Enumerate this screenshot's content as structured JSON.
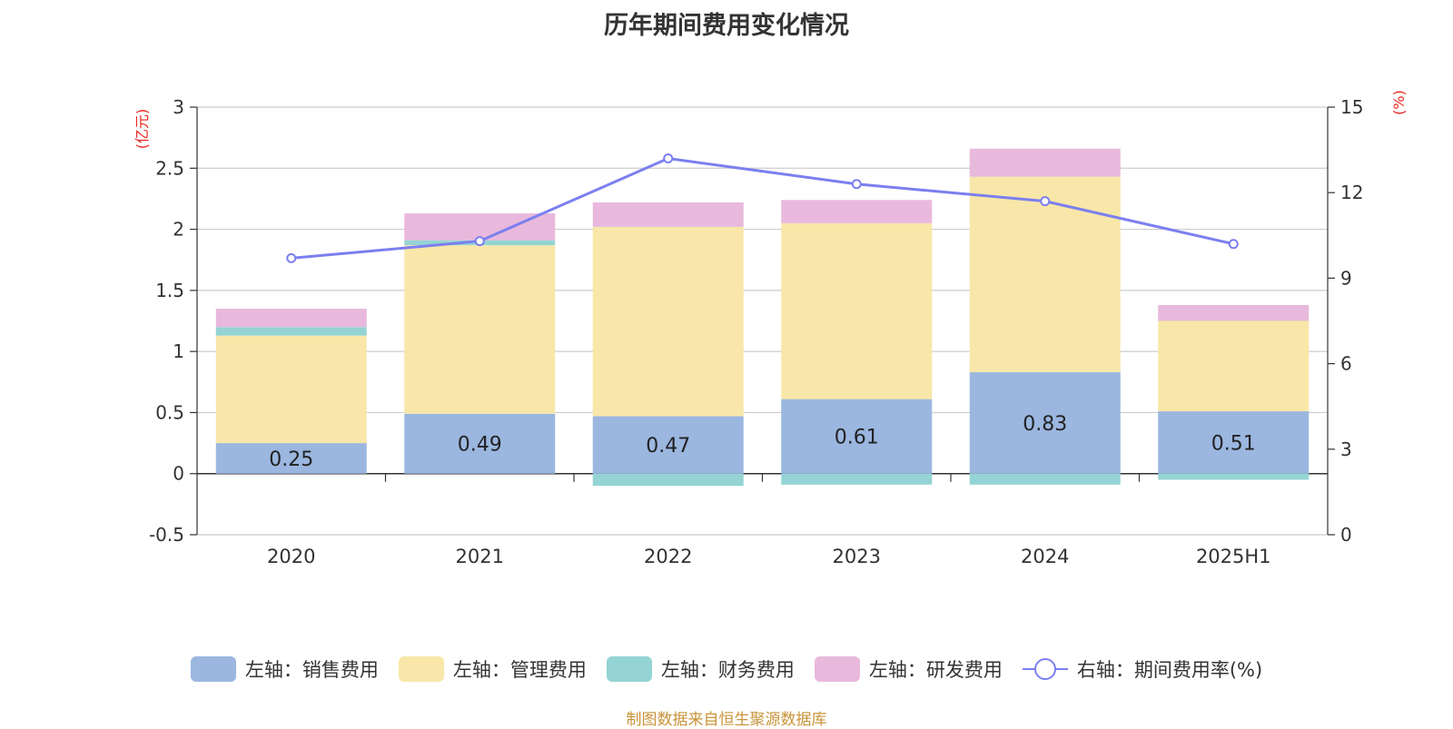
{
  "chart_data": {
    "type": "bar",
    "title": "历年期间费用变化情况",
    "categories": [
      "2020",
      "2021",
      "2022",
      "2023",
      "2024",
      "2025H1"
    ],
    "left_axis": {
      "unit_label": "(亿元)",
      "ylim": [
        -0.5,
        3
      ],
      "ticks": [
        "3",
        "2.5",
        "2",
        "1.5",
        "1",
        "0.5",
        "0",
        "-0.5"
      ],
      "tick_values": [
        3,
        2.5,
        2,
        1.5,
        1,
        0.5,
        0,
        -0.5
      ]
    },
    "right_axis": {
      "unit_label": "(%)",
      "ylim": [
        0,
        15
      ],
      "ticks": [
        "15",
        "12",
        "9",
        "6",
        "3",
        "0"
      ],
      "tick_values": [
        15,
        12,
        9,
        6,
        3,
        0
      ]
    },
    "series": [
      {
        "name": "左轴：销售费用",
        "axis": "left",
        "kind": "bar",
        "color": "#9bb7e0",
        "values": [
          0.25,
          0.49,
          0.47,
          0.61,
          0.83,
          0.51
        ],
        "data_labels": [
          "0.25",
          "0.49",
          "0.47",
          "0.61",
          "0.83",
          "0.51"
        ]
      },
      {
        "name": "左轴：管理费用",
        "axis": "left",
        "kind": "bar",
        "color": "#f8e7a9",
        "values": [
          0.88,
          1.38,
          1.55,
          1.44,
          1.6,
          0.74
        ]
      },
      {
        "name": "左轴：财务费用",
        "axis": "left",
        "kind": "bar",
        "color": "#95d4d4",
        "values": [
          0.07,
          0.04,
          -0.1,
          -0.09,
          -0.09,
          -0.05
        ]
      },
      {
        "name": "左轴：研发费用",
        "axis": "left",
        "kind": "bar",
        "color": "#e8b9dc",
        "values": [
          0.15,
          0.22,
          0.2,
          0.19,
          0.23,
          0.13
        ]
      },
      {
        "name": "右轴：期间费用率(%)",
        "axis": "right",
        "kind": "line",
        "color": "#7b7fef",
        "values": [
          9.7,
          10.3,
          13.2,
          12.3,
          11.7,
          10.2
        ]
      }
    ]
  },
  "source_text": "制图数据来自恒生聚源数据库"
}
